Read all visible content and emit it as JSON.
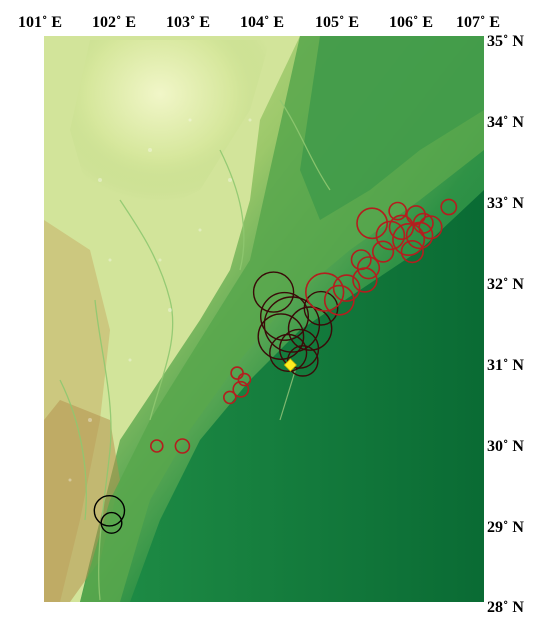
{
  "map": {
    "longitude_labels": [
      "101˚ E",
      "102˚ E",
      "103˚ E",
      "104˚ E",
      "105˚ E",
      "106˚ E",
      "107˚ E"
    ],
    "latitude_labels": [
      "35˚ N",
      "34˚ N",
      "33˚ N",
      "32˚ N",
      "31˚ N",
      "30˚ N",
      "29˚ N",
      "28˚ N"
    ],
    "longitude_range": [
      101,
      107
    ],
    "latitude_range": [
      28,
      35
    ],
    "colors": {
      "terrain_low": "#0e7a3a",
      "terrain_mid": "#5eae4d",
      "terrain_high": "#e6f0b0",
      "terrain_peak": "#b09050",
      "marker_red": "#b41e1e",
      "marker_dark": "#3a0a08",
      "marker_black": "#000000",
      "epicenter": "#ffee22"
    },
    "epicenter": {
      "lon": 104.43,
      "lat": 31.0,
      "symbol": "yellow-diamond"
    },
    "events": [
      {
        "lon": 101.95,
        "lat": 29.2,
        "mag": 5.2,
        "color": "black"
      },
      {
        "lon": 101.98,
        "lat": 29.05,
        "mag": 4.3,
        "color": "black"
      },
      {
        "lon": 102.6,
        "lat": 30.0,
        "mag": 3.5,
        "color": "red"
      },
      {
        "lon": 102.95,
        "lat": 30.0,
        "mag": 3.7,
        "color": "red"
      },
      {
        "lon": 103.6,
        "lat": 30.6,
        "mag": 3.4,
        "color": "red"
      },
      {
        "lon": 103.75,
        "lat": 30.7,
        "mag": 3.8,
        "color": "red"
      },
      {
        "lon": 103.8,
        "lat": 30.82,
        "mag": 3.4,
        "color": "red"
      },
      {
        "lon": 103.7,
        "lat": 30.9,
        "mag": 3.2,
        "color": "red"
      },
      {
        "lon": 104.2,
        "lat": 31.9,
        "mag": 6.1,
        "color": "dark"
      },
      {
        "lon": 104.45,
        "lat": 31.5,
        "mag": 7.5,
        "color": "dark"
      },
      {
        "lon": 104.3,
        "lat": 31.35,
        "mag": 6.6,
        "color": "dark"
      },
      {
        "lon": 104.55,
        "lat": 31.2,
        "mag": 6.0,
        "color": "dark"
      },
      {
        "lon": 104.4,
        "lat": 31.15,
        "mag": 5.8,
        "color": "dark"
      },
      {
        "lon": 104.7,
        "lat": 31.45,
        "mag": 6.4,
        "color": "dark"
      },
      {
        "lon": 104.85,
        "lat": 31.7,
        "mag": 5.5,
        "color": "dark"
      },
      {
        "lon": 104.35,
        "lat": 31.6,
        "mag": 6.8,
        "color": "dark"
      },
      {
        "lon": 104.6,
        "lat": 31.05,
        "mag": 5.2,
        "color": "dark"
      },
      {
        "lon": 104.9,
        "lat": 31.9,
        "mag": 5.9,
        "color": "red"
      },
      {
        "lon": 105.1,
        "lat": 31.8,
        "mag": 5.1,
        "color": "red"
      },
      {
        "lon": 105.2,
        "lat": 31.95,
        "mag": 4.8,
        "color": "red"
      },
      {
        "lon": 105.45,
        "lat": 32.05,
        "mag": 4.6,
        "color": "red"
      },
      {
        "lon": 105.5,
        "lat": 32.2,
        "mag": 4.4,
        "color": "red"
      },
      {
        "lon": 105.4,
        "lat": 32.3,
        "mag": 4.2,
        "color": "red"
      },
      {
        "lon": 105.7,
        "lat": 32.4,
        "mag": 4.3,
        "color": "red"
      },
      {
        "lon": 105.8,
        "lat": 32.6,
        "mag": 5.0,
        "color": "red"
      },
      {
        "lon": 105.55,
        "lat": 32.75,
        "mag": 5.2,
        "color": "red"
      },
      {
        "lon": 105.95,
        "lat": 32.7,
        "mag": 4.6,
        "color": "red"
      },
      {
        "lon": 106.05,
        "lat": 32.55,
        "mag": 5.3,
        "color": "red"
      },
      {
        "lon": 106.2,
        "lat": 32.6,
        "mag": 4.8,
        "color": "red"
      },
      {
        "lon": 106.1,
        "lat": 32.4,
        "mag": 4.4,
        "color": "red"
      },
      {
        "lon": 106.25,
        "lat": 32.75,
        "mag": 4.2,
        "color": "red"
      },
      {
        "lon": 106.35,
        "lat": 32.7,
        "mag": 4.5,
        "color": "red"
      },
      {
        "lon": 106.15,
        "lat": 32.85,
        "mag": 4.1,
        "color": "red"
      },
      {
        "lon": 105.9,
        "lat": 32.9,
        "mag": 4.0,
        "color": "red"
      },
      {
        "lon": 106.6,
        "lat": 32.95,
        "mag": 3.8,
        "color": "red"
      }
    ]
  }
}
